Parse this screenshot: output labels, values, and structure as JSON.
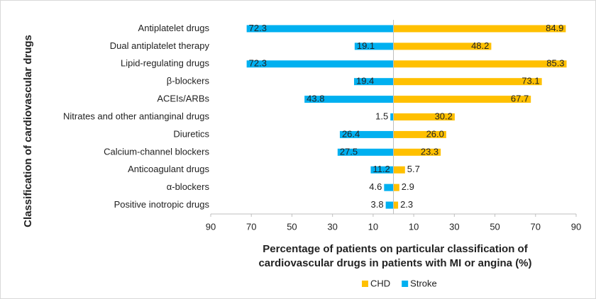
{
  "chart_data": {
    "type": "diverging-bar",
    "x_label": [
      "Percentage of patients on particular classification of",
      "cardiovascular drugs in patients with MI or angina (%)"
    ],
    "y_label": "Classification of cardiovascular drugs",
    "categories": [
      "Antiplatelet drugs",
      "Dual antiplatelet therapy",
      "Lipid-regulating drugs",
      "β-blockers",
      "ACEIs/ARBs",
      "Nitrates and other antianginal drugs",
      "Diuretics",
      "Calcium-channel blockers",
      "Anticoagulant drugs",
      "α-blockers",
      "Positive inotropic drugs"
    ],
    "series": [
      {
        "name": "CHD",
        "color": "#FFC000",
        "mirrored": false,
        "values": [
          84.9,
          48.2,
          85.3,
          73.1,
          67.7,
          30.2,
          26.0,
          23.3,
          5.7,
          2.9,
          2.3
        ],
        "value_labels": [
          "84.9",
          "48.2",
          "85.3",
          "73.1",
          "67.7",
          "30.2",
          "26.0",
          "23.3",
          "5.7",
          "2.9",
          "2.3"
        ]
      },
      {
        "name": "Stroke",
        "color": "#00B0F0",
        "mirrored": true,
        "values": [
          72.3,
          19.1,
          72.3,
          19.4,
          43.8,
          1.5,
          26.4,
          27.5,
          11.2,
          4.6,
          3.8
        ]
      }
    ],
    "xlim": [
      -90,
      90
    ],
    "xticks": [
      {
        "value": -90,
        "label": "90"
      },
      {
        "value": -70,
        "label": "70"
      },
      {
        "value": -50,
        "label": "50"
      },
      {
        "value": -30,
        "label": "30"
      },
      {
        "value": -10,
        "label": "10"
      },
      10,
      30,
      50,
      70,
      90
    ],
    "legend": "bottom"
  }
}
